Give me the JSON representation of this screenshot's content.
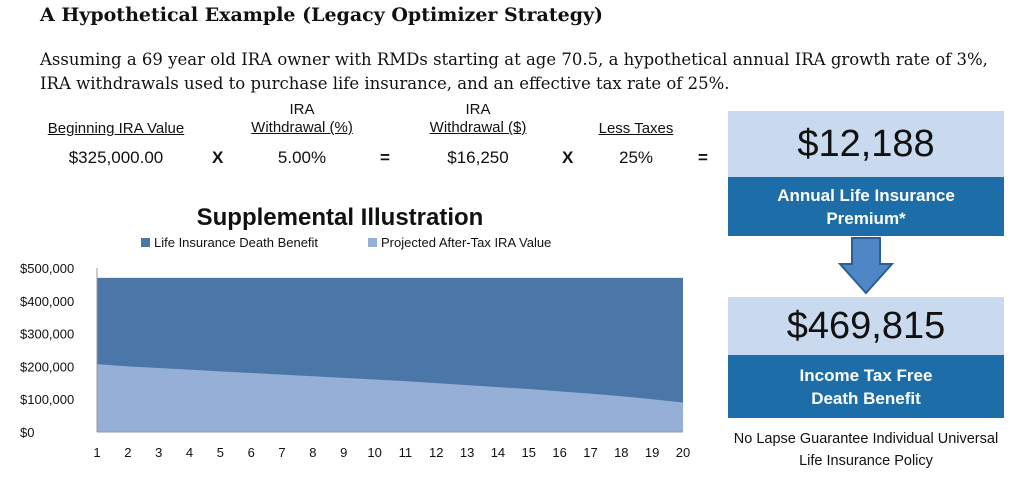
{
  "title": "A Hypothetical Example (Legacy Optimizer Strategy)",
  "intro": "Assuming a 69 year old IRA owner with RMDs starting at age 70.5, a hypothetical annual IRA growth rate of 3%, IRA withdrawals used to purchase life insurance, and an effective tax rate of 25%.",
  "calc": {
    "beginning_label": "Beginning IRA Value",
    "beginning_value": "$325,000.00",
    "withdrawal_pct_label_1": "IRA",
    "withdrawal_pct_label_2": "Withdrawal (%)",
    "withdrawal_pct_value": "5.00%",
    "withdrawal_amt_label_1": "IRA",
    "withdrawal_amt_label_2": "Withdrawal ($)",
    "withdrawal_amt_value": "$16,250",
    "taxes_label": "Less Taxes",
    "taxes_value": "25%",
    "op_times": "X",
    "op_equals": "="
  },
  "premium": {
    "amount": "$12,188",
    "label": "Annual Life Insurance Premium*"
  },
  "benefit": {
    "amount": "$469,815",
    "label": "Income Tax Free Death Benefit"
  },
  "policy_note": "No Lapse Guarantee Individual Universal Life Insurance Policy",
  "colors": {
    "death_benefit": "#4a76a8",
    "ira_value": "#96afd6",
    "panel_dark": "#1d6ea8",
    "panel_light": "#c9d9ee",
    "arrow": "#4f86c6"
  },
  "icons": {
    "arrow": "down-arrow-icon"
  },
  "chart_data": {
    "type": "area",
    "title": "Supplemental Illustration",
    "x": [
      1,
      2,
      3,
      4,
      5,
      6,
      7,
      8,
      9,
      10,
      11,
      12,
      13,
      14,
      15,
      16,
      17,
      18,
      19,
      20
    ],
    "series": [
      {
        "name": "Life Insurance Death Benefit",
        "values": [
          469815,
          469815,
          469815,
          469815,
          469815,
          469815,
          469815,
          469815,
          469815,
          469815,
          469815,
          469815,
          469815,
          469815,
          469815,
          469815,
          469815,
          469815,
          469815,
          469815
        ]
      },
      {
        "name": "Projected After-Tax IRA Value",
        "values": [
          207000,
          200000,
          195000,
          190000,
          185000,
          180000,
          175000,
          170000,
          165000,
          160000,
          155000,
          149000,
          143000,
          137000,
          131000,
          124000,
          117000,
          109000,
          100000,
          90000
        ]
      }
    ],
    "yticks": [
      "$0",
      "$100,000",
      "$200,000",
      "$300,000",
      "$400,000",
      "$500,000"
    ],
    "ylim": [
      0,
      500000
    ],
    "legend": "top",
    "grid": false
  }
}
